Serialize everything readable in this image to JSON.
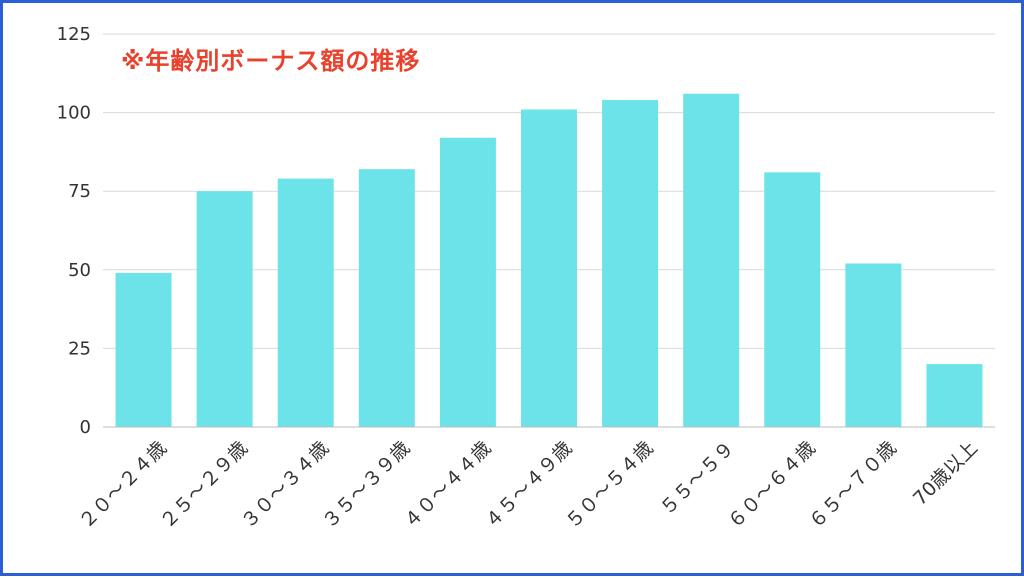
{
  "chart_data": {
    "type": "bar",
    "title": "※年齢別ボーナス額の推移",
    "categories": [
      "２０～２４歳",
      "２５～２９歳",
      "３０～３４歳",
      "３５～３９歳",
      "４０～４４歳",
      "４５～４９歳",
      "５０～５４歳",
      "５５～５９",
      "６０～６４歳",
      "６５～７０歳",
      "70歳以上"
    ],
    "values": [
      49,
      75,
      79,
      82,
      92,
      101,
      104,
      106,
      81,
      52,
      20
    ],
    "ylim": [
      0,
      125
    ],
    "yticks": [
      "0",
      "25",
      "50",
      "75",
      "100",
      "125"
    ],
    "grid": true,
    "xlabel": "",
    "ylabel": "",
    "colors": {
      "bar": "#6ce3e8",
      "title": "#e8412c",
      "frame": "#2a5fd6",
      "grid": "#d9d9d9"
    }
  }
}
